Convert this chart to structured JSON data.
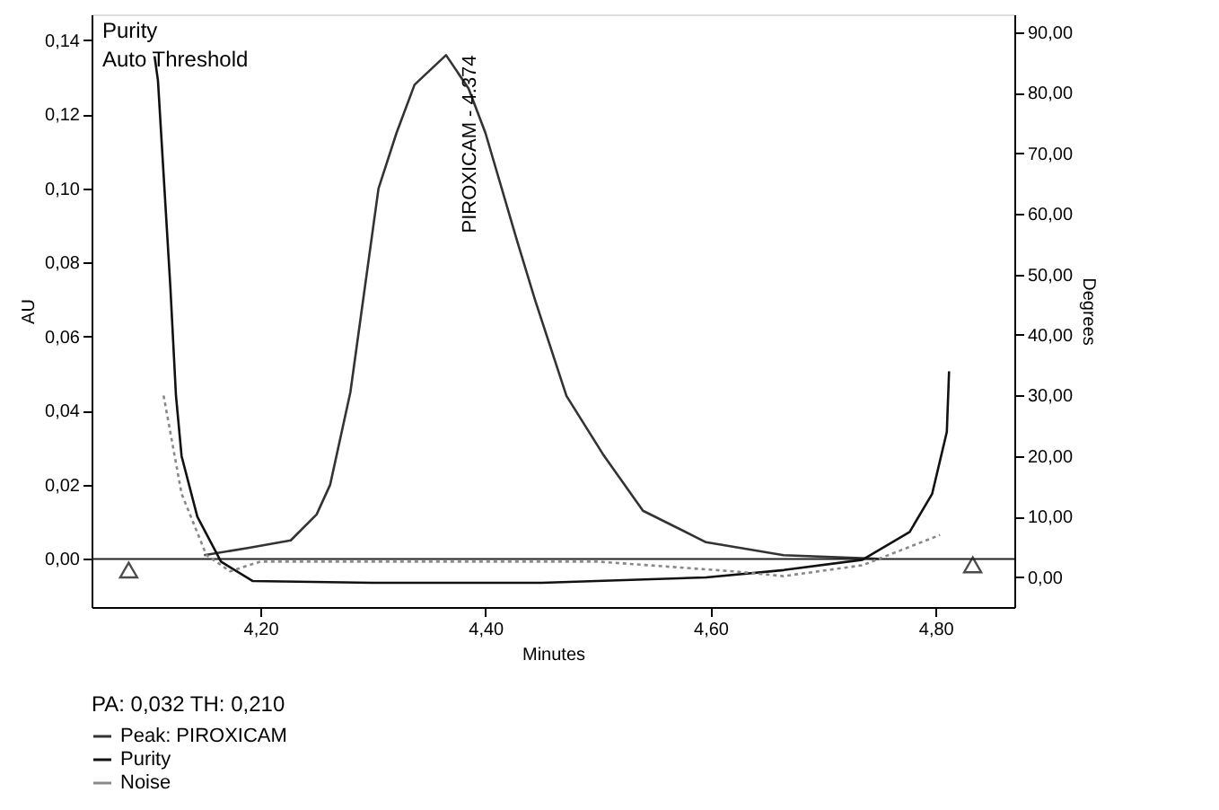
{
  "chart_data": {
    "type": "line",
    "xlabel": "Minutes",
    "ylabel": "AU",
    "y2label": "Degrees",
    "legend_title": "PA: 0,032 TH: 0,210",
    "annotations": [
      "Purity",
      "Auto Threshold",
      {
        "text": "PIROXICAM - 4.374",
        "x": 4.374,
        "y": 0.136
      }
    ],
    "xlim": [
      4.05,
      4.87
    ],
    "ylim": [
      -0.013,
      0.147
    ],
    "y2lim": [
      -4.9,
      92.9
    ],
    "xticks": [
      {
        "value": 4.2,
        "label": "4,20"
      },
      {
        "value": 4.4,
        "label": "4,40"
      },
      {
        "value": 4.6,
        "label": "4,60"
      },
      {
        "value": 4.8,
        "label": "4,80"
      }
    ],
    "yticks": [
      {
        "value": 0,
        "label": "0,00"
      },
      {
        "value": 0.02,
        "label": "0,02"
      },
      {
        "value": 0.04,
        "label": "0,04"
      },
      {
        "value": 0.06,
        "label": "0,06"
      },
      {
        "value": 0.08,
        "label": "0,08"
      },
      {
        "value": 0.1,
        "label": "0,10"
      },
      {
        "value": 0.12,
        "label": "0,12"
      },
      {
        "value": 0.14,
        "label": "0,14"
      }
    ],
    "y2ticks": [
      {
        "value": 0,
        "label": "0,00"
      },
      {
        "value": 10,
        "label": "10,00"
      },
      {
        "value": 20,
        "label": "20,00"
      },
      {
        "value": 30,
        "label": "30,00"
      },
      {
        "value": 40,
        "label": "40,00"
      },
      {
        "value": 50,
        "label": "50,00"
      },
      {
        "value": 60,
        "label": "60,00"
      },
      {
        "value": 70,
        "label": "70,00"
      },
      {
        "value": 80,
        "label": "80,00"
      },
      {
        "value": 90,
        "label": "90,00"
      }
    ],
    "ref_lines": [
      {
        "axis": "y",
        "value": 0,
        "color": "#222222"
      }
    ],
    "grid": false,
    "legend": "bottom",
    "series": [
      {
        "name": "Peak: PIROXICAM",
        "color": "#333333",
        "x": [
          4.15,
          4.19,
          4.227,
          4.25,
          4.262,
          4.28,
          4.305,
          4.321,
          4.337,
          4.365,
          4.385,
          4.4,
          4.428,
          4.444,
          4.472,
          4.505,
          4.54,
          4.596,
          4.665,
          4.75
        ],
        "values": [
          0.001,
          0.003,
          0.005,
          0.012,
          0.02,
          0.045,
          0.1,
          0.115,
          0.128,
          0.136,
          0.127,
          0.115,
          0.086,
          0.07,
          0.044,
          0.028,
          0.013,
          0.0045,
          0.001,
          0.0
        ]
      },
      {
        "name": "Purity",
        "axis": "y2",
        "color": "#111111",
        "x": [
          4.106,
          4.109,
          4.12,
          4.125,
          4.13,
          4.144,
          4.165,
          4.193,
          4.3,
          4.45,
          4.596,
          4.665,
          4.735,
          4.777,
          4.797,
          4.81,
          4.812
        ],
        "values": [
          86,
          82,
          48,
          30,
          20,
          10,
          2.6,
          -0.6,
          -0.9,
          -0.9,
          0,
          1.2,
          2.9,
          7.5,
          13.8,
          24,
          34
        ]
      },
      {
        "name": "Noise",
        "axis": "y2",
        "color": "#888888",
        "line_style": "dotted",
        "x": [
          4.114,
          4.13,
          4.152,
          4.173,
          4.2,
          4.5,
          4.62,
          4.665,
          4.735,
          4.804
        ],
        "values": [
          30,
          13.8,
          3.7,
          1,
          2.6,
          2.6,
          1,
          0.2,
          2,
          7
        ]
      },
      {
        "type": "scatter",
        "marker": "triangle",
        "color": "#000000",
        "x": [
          4.083,
          4.833
        ],
        "values": [
          -0.003,
          -0.0016
        ]
      }
    ]
  }
}
